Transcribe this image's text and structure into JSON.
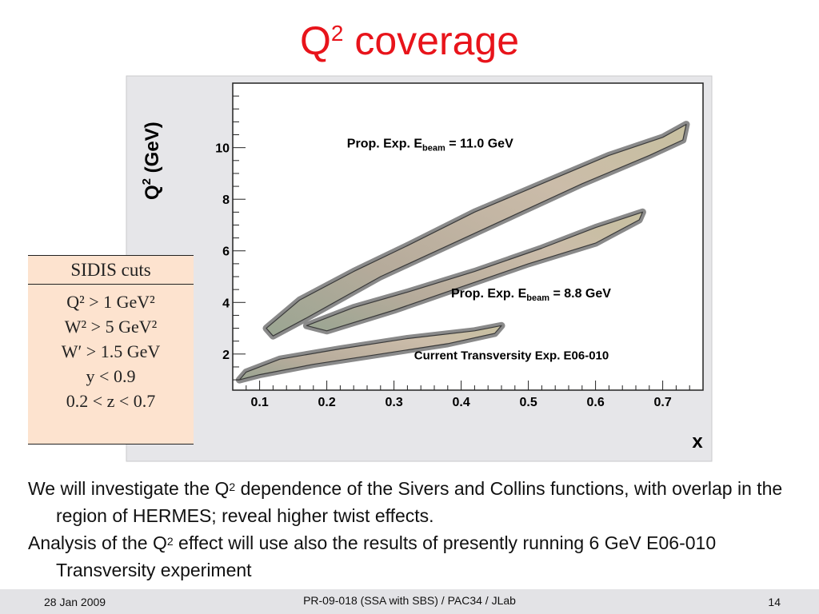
{
  "slide": {
    "title_main": "Q",
    "title_sup": "2",
    "title_rest": " coverage"
  },
  "chart_data": {
    "type": "area",
    "xlabel": "x",
    "ylabel_main": "Q",
    "ylabel_sup": "2",
    "ylabel_rest": " (GeV)",
    "xticks": [
      "0.1",
      "0.2",
      "0.3",
      "0.4",
      "0.5",
      "0.6",
      "0.7"
    ],
    "xtick_values": [
      0.1,
      0.2,
      0.3,
      0.4,
      0.5,
      0.6,
      0.7
    ],
    "yticks": [
      "2",
      "4",
      "6",
      "8",
      "10"
    ],
    "ytick_values": [
      2,
      4,
      6,
      8,
      10
    ],
    "xlim": [
      0.06,
      0.76
    ],
    "ylim": [
      0.6,
      12.5
    ],
    "series": [
      {
        "name": "Prop. Exp. E",
        "name_sub": "beam",
        "name_rest": " = 11.0 GeV",
        "color": "#c9b9a7",
        "outline": [
          [
            0.11,
            3.0
          ],
          [
            0.16,
            4.1
          ],
          [
            0.24,
            5.2
          ],
          [
            0.32,
            6.2
          ],
          [
            0.42,
            7.5
          ],
          [
            0.52,
            8.6
          ],
          [
            0.62,
            9.7
          ],
          [
            0.7,
            10.4
          ],
          [
            0.735,
            10.9
          ],
          [
            0.73,
            10.3
          ],
          [
            0.68,
            9.7
          ],
          [
            0.58,
            8.6
          ],
          [
            0.48,
            7.4
          ],
          [
            0.38,
            6.2
          ],
          [
            0.28,
            5.0
          ],
          [
            0.17,
            3.4
          ],
          [
            0.12,
            2.7
          ]
        ]
      },
      {
        "name": "Prop. Exp. E",
        "name_sub": "beam",
        "name_rest": " = 8.8 GeV",
        "color": "#c9b9a7",
        "outline": [
          [
            0.17,
            3.1
          ],
          [
            0.24,
            3.8
          ],
          [
            0.32,
            4.4
          ],
          [
            0.42,
            5.2
          ],
          [
            0.52,
            6.1
          ],
          [
            0.6,
            6.9
          ],
          [
            0.67,
            7.5
          ],
          [
            0.665,
            7.2
          ],
          [
            0.6,
            6.3
          ],
          [
            0.5,
            5.5
          ],
          [
            0.4,
            4.6
          ],
          [
            0.3,
            3.7
          ],
          [
            0.2,
            2.9
          ]
        ]
      },
      {
        "name": "Current Transversity Exp. E06-010",
        "color": "#c9b9a7",
        "outline": [
          [
            0.08,
            1.3
          ],
          [
            0.13,
            1.8
          ],
          [
            0.22,
            2.2
          ],
          [
            0.32,
            2.6
          ],
          [
            0.42,
            2.9
          ],
          [
            0.46,
            3.1
          ],
          [
            0.45,
            2.8
          ],
          [
            0.38,
            2.4
          ],
          [
            0.28,
            2.0
          ],
          [
            0.18,
            1.6
          ],
          [
            0.1,
            1.2
          ],
          [
            0.07,
            1.0
          ]
        ]
      }
    ],
    "annotations": [
      {
        "text_main": "Prop. Exp. E",
        "text_sub": "beam",
        "text_rest": " = 11.0 GeV",
        "x": 0.23,
        "y": 10.0
      },
      {
        "text_main": "Prop. Exp. E",
        "text_sub": "beam",
        "text_rest": " = 8.8 GeV",
        "x": 0.385,
        "y": 4.2
      },
      {
        "text_main": "Current Transversity Exp. E06-010",
        "text_sub": "",
        "text_rest": "",
        "x": 0.33,
        "y": 1.8
      }
    ]
  },
  "cuts": {
    "header": "SIDIS cuts",
    "lines": [
      "Q² > 1 GeV²",
      "W² > 5 GeV²",
      "W′ > 1.5 GeV",
      "y < 0.9",
      "0.2 < z < 0.7"
    ]
  },
  "bullets": {
    "b1_a": "We will investigate the Q",
    "b1_sup": "2",
    "b1_b": " dependence of the Sivers and Collins functions, with overlap in the region of HERMES; reveal higher twist effects.",
    "b2_a": "Analysis of the Q",
    "b2_sup": "2",
    "b2_b": " effect will use also the results of presently running 6 GeV E06-010 Transversity experiment"
  },
  "footer": {
    "date": "28 Jan 2009",
    "center": "PR-09-018 (SSA with SBS) / PAC34 / JLab",
    "page": "14"
  }
}
